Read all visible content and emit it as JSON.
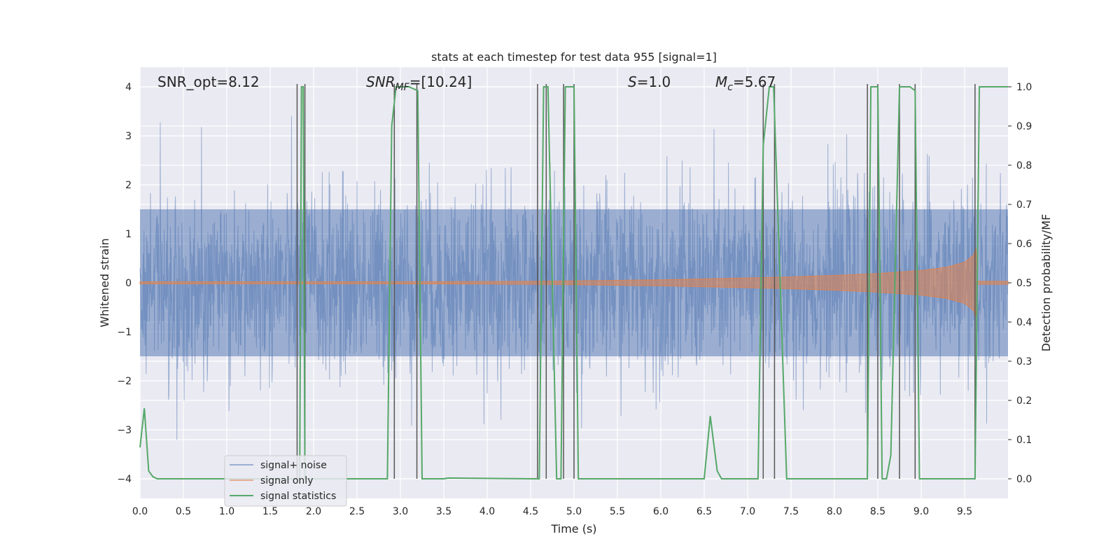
{
  "chart_data": {
    "type": "line",
    "title": "stats at each timestep for test data 955 [signal=1]",
    "xlabel": "Time (s)",
    "ylabel": "Whitened strain",
    "y2label": "Detection probability/MF",
    "xlim": [
      0,
      10
    ],
    "ylim": [
      -4.4,
      4.4
    ],
    "y2lim": [
      -0.05,
      1.05
    ],
    "xticks": [
      0.0,
      0.5,
      1.0,
      1.5,
      2.0,
      2.5,
      3.0,
      3.5,
      4.0,
      4.5,
      5.0,
      5.5,
      6.0,
      6.5,
      7.0,
      7.5,
      8.0,
      8.5,
      9.0,
      9.5
    ],
    "xtick_labels": [
      "0.0",
      "0.5",
      "1.0",
      "1.5",
      "2.0",
      "2.5",
      "3.0",
      "3.5",
      "4.0",
      "4.5",
      "5.0",
      "5.5",
      "6.0",
      "6.5",
      "7.0",
      "7.5",
      "8.0",
      "8.5",
      "9.0",
      "9.5"
    ],
    "yticks": [
      -4,
      -3,
      -2,
      -1,
      0,
      1,
      2,
      3,
      4
    ],
    "ytick_labels": [
      "−4",
      "−3",
      "−2",
      "−1",
      "0",
      "1",
      "2",
      "3",
      "4"
    ],
    "y2ticks": [
      0.0,
      0.1,
      0.2,
      0.3,
      0.4,
      0.5,
      0.6,
      0.7,
      0.8,
      0.9,
      1.0
    ],
    "y2tick_labels": [
      "0.0",
      "0.1",
      "0.2",
      "0.3",
      "0.4",
      "0.5",
      "0.6",
      "0.7",
      "0.8",
      "0.9",
      "1.0"
    ],
    "grid": true,
    "legend_position": "lower-left",
    "annotations": {
      "snr_opt": "SNR_opt=8.12",
      "snr_mf_sym": "SNR",
      "snr_mf_sub": "MF",
      "snr_mf_val": "=[10.24]",
      "s_sym": "S",
      "s_val": "=1.0",
      "mc_sym": "M",
      "mc_sub": "c",
      "mc_val": "=5.67"
    },
    "colors": {
      "plot_bg": "#eaeaf2",
      "grid": "#ffffff",
      "noise": "#4c72b0",
      "signal": "#dd8452",
      "stat": "#55a868",
      "vline": "#555555"
    },
    "series": [
      {
        "name": "signal+ noise",
        "kind": "noise_band",
        "core_abs": 1.5,
        "typical_peak_abs": 2.3,
        "max_abs": 3.9,
        "min_value": -4.0
      },
      {
        "name": "signal only",
        "kind": "chirp_envelope",
        "x": [
          0.0,
          1.0,
          2.0,
          3.0,
          4.0,
          4.5,
          5.0,
          5.5,
          6.0,
          6.5,
          7.0,
          7.5,
          8.0,
          8.5,
          9.0,
          9.3,
          9.5,
          9.6,
          9.63,
          9.65,
          10.0
        ],
        "envelope": [
          0.02,
          0.02,
          0.02,
          0.02,
          0.025,
          0.03,
          0.04,
          0.05,
          0.06,
          0.08,
          0.1,
          0.12,
          0.15,
          0.19,
          0.25,
          0.32,
          0.42,
          0.56,
          0.7,
          0.03,
          0.03
        ]
      },
      {
        "name": "signal statistics",
        "kind": "probability",
        "axis": "right",
        "x": [
          0.0,
          0.05,
          0.1,
          0.15,
          0.2,
          0.25,
          1.8,
          1.82,
          1.84,
          1.86,
          1.88,
          1.9,
          1.92,
          2.8,
          2.85,
          2.9,
          2.95,
          3.0,
          3.1,
          3.2,
          3.25,
          3.5,
          3.55,
          4.55,
          4.6,
          4.65,
          4.7,
          4.8,
          4.85,
          4.9,
          4.95,
          5.0,
          5.05,
          6.5,
          6.57,
          6.65,
          6.7,
          7.12,
          7.18,
          7.25,
          7.3,
          7.45,
          8.38,
          8.42,
          8.5,
          8.55,
          8.6,
          8.65,
          8.75,
          8.8,
          8.87,
          8.93,
          8.98,
          9.62,
          9.67,
          9.75,
          10.0
        ],
        "values": [
          0.08,
          0.18,
          0.02,
          0.005,
          0.0,
          0.0,
          0.0,
          0.0,
          0.0,
          1.0,
          1.0,
          0.0,
          0.0,
          0.0,
          0.0,
          0.9,
          1.0,
          1.0,
          1.0,
          0.99,
          0.0,
          0.0,
          0.002,
          0.0,
          0.0,
          1.0,
          1.0,
          0.0,
          0.0,
          1.0,
          1.0,
          1.0,
          0.0,
          0.0,
          0.16,
          0.02,
          0.0,
          0.0,
          0.85,
          1.0,
          1.0,
          0.0,
          0.0,
          1.0,
          1.0,
          0.0,
          0.0,
          0.06,
          1.0,
          1.0,
          1.0,
          0.99,
          0.0,
          0.0,
          1.0,
          1.0,
          1.0
        ]
      }
    ],
    "vlines": [
      1.81,
      1.9,
      2.93,
      3.19,
      4.58,
      4.68,
      4.88,
      5.0,
      7.18,
      7.31,
      8.38,
      8.5,
      8.75,
      8.93,
      9.62
    ]
  }
}
